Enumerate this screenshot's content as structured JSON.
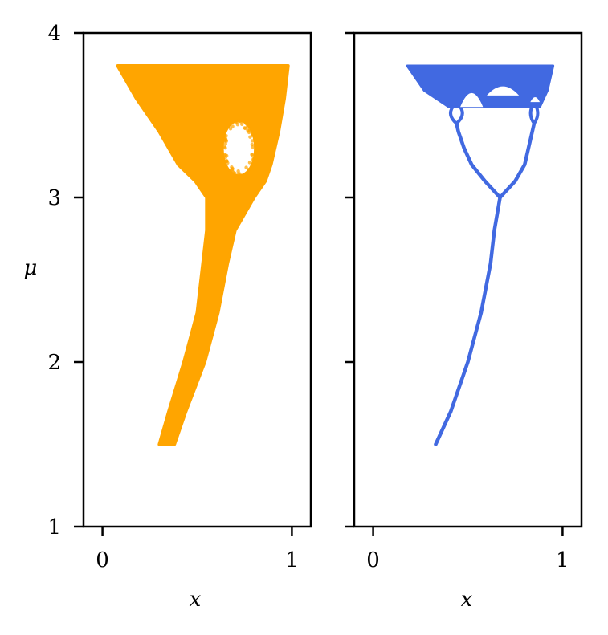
{
  "chart_data": [
    {
      "type": "scatter",
      "panel": "left",
      "xlabel": "x",
      "ylabel": "μ",
      "xlim": [
        -0.1,
        1.1
      ],
      "ylim": [
        1,
        4
      ],
      "xticks": [
        "0",
        "1"
      ],
      "yticks": [
        "1",
        "2",
        "3",
        "4"
      ],
      "color": "#FFA500",
      "shape": "filled envelope of x values versus μ",
      "envelope": {
        "mu": [
          1.5,
          1.7,
          2.0,
          2.3,
          2.6,
          2.8,
          3.0,
          3.1,
          3.2,
          3.4,
          3.6,
          3.8
        ],
        "x_min": [
          0.3,
          0.35,
          0.43,
          0.5,
          0.53,
          0.55,
          0.55,
          0.49,
          0.4,
          0.3,
          0.18,
          0.08
        ],
        "x_max": [
          0.38,
          0.44,
          0.54,
          0.61,
          0.66,
          0.7,
          0.8,
          0.86,
          0.89,
          0.93,
          0.96,
          0.98
        ]
      },
      "hole": {
        "x_center": 0.72,
        "mu_center": 3.3,
        "x_halfwidth": 0.08,
        "mu_halfheight": 0.16
      }
    },
    {
      "type": "scatter",
      "panel": "right",
      "xlabel": "x",
      "xlim": [
        -0.1,
        1.1
      ],
      "ylim": [
        1,
        4
      ],
      "xticks": [
        "0",
        "1"
      ],
      "color": "#4169E1",
      "shape": "bifurcation diagram",
      "stable_branch": {
        "mu": [
          1.5,
          1.7,
          2.0,
          2.3,
          2.6,
          2.8,
          3.0
        ],
        "x": [
          0.33,
          0.41,
          0.5,
          0.57,
          0.62,
          0.64,
          0.67
        ]
      },
      "period2_branches": {
        "mu": [
          3.0,
          3.1,
          3.2,
          3.3,
          3.4,
          3.45
        ],
        "x_low": [
          0.67,
          0.59,
          0.52,
          0.48,
          0.45,
          0.44
        ],
        "x_high": [
          0.67,
          0.75,
          0.8,
          0.82,
          0.84,
          0.85
        ]
      },
      "chaotic_band": {
        "mu": [
          3.55,
          3.65,
          3.8
        ],
        "x_min": [
          0.4,
          0.27,
          0.18
        ],
        "x_max": [
          0.88,
          0.92,
          0.95
        ]
      }
    }
  ]
}
